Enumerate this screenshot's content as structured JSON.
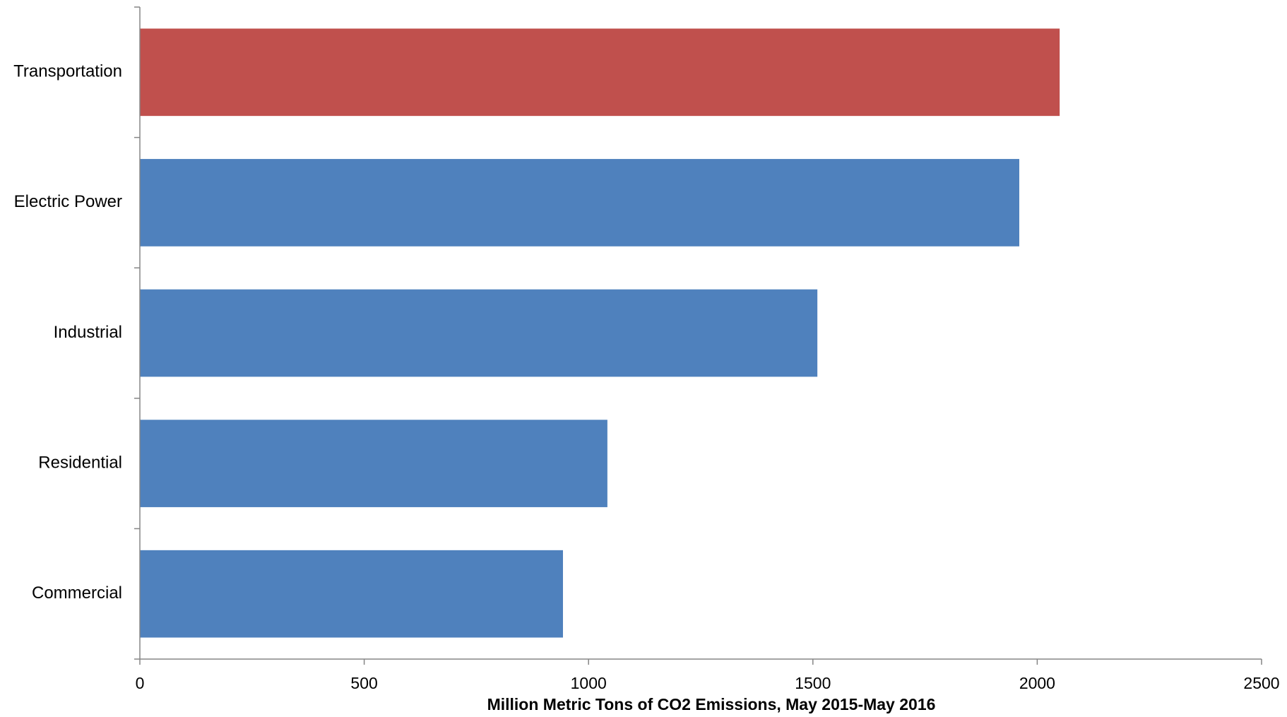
{
  "chart_data": {
    "type": "bar",
    "orientation": "horizontal",
    "categories": [
      "Transportation",
      "Electric Power",
      "Industrial",
      "Residential",
      "Commercial"
    ],
    "values": [
      2050,
      1960,
      1510,
      1042,
      943
    ],
    "colors": [
      "#C0504D",
      "#4F81BD",
      "#4F81BD",
      "#4F81BD",
      "#4F81BD"
    ],
    "xlabel": "Million Metric Tons of CO2 Emissions, May 2015-May 2016",
    "xlim": [
      0,
      2500
    ],
    "xticks": [
      0,
      500,
      1000,
      1500,
      2000,
      2500
    ],
    "xtick_labels": [
      "0",
      "500",
      "1000",
      "1500",
      "2000",
      "2500"
    ],
    "grid": false,
    "legend": "none"
  }
}
